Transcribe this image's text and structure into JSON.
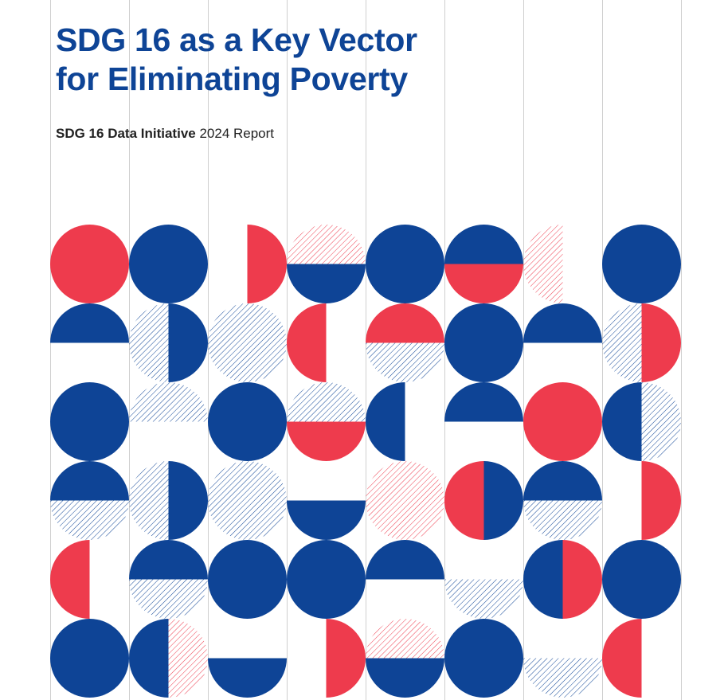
{
  "document": {
    "title_line1": "SDG 16 as a Key Vector",
    "title_line2": "for Eliminating Poverty",
    "subtitle_strong": "SDG 16 Data Initiative",
    "subtitle_rest": " 2024 Report"
  },
  "colors": {
    "navy": "#0e4496",
    "red": "#ee3b4d",
    "grid_line": "#cfcfcf",
    "background": "#ffffff"
  },
  "pattern": {
    "description_key": "decorative-dot-grid",
    "cells": [
      [
        "full-red",
        "split-h:navy:navy",
        "half-r:red",
        "split-h:hatch-red:navy",
        "full-navy",
        "split-h:navy:red",
        "half-l:hatch-red",
        "full-navy"
      ],
      [
        "half-t:navy",
        "split-v:hatch-navy:navy",
        "full-hatch-navy",
        "half-l:red",
        "split-h:red:hatch-navy",
        "full-navy",
        "half-t:navy",
        "split-v:hatch-navy:red"
      ],
      [
        "full-navy",
        "half-t:hatch-navy",
        "full-navy",
        "split-h:hatch-navy:red",
        "half-l:navy",
        "half-t:navy",
        "full-red",
        "split-v:navy:hatch-navy"
      ],
      [
        "split-h:navy:hatch-navy",
        "split-v:hatch-navy:navy",
        "full-hatch-navy",
        "half-b:navy",
        "full-hatch-red",
        "split-v:red:navy",
        "split-h:navy:hatch-navy",
        "half-r:red"
      ],
      [
        "half-l:red",
        "split-h:navy:hatch-navy",
        "full-navy",
        "full-navy",
        "half-t:navy",
        "half-b:hatch-navy",
        "split-v:navy:red",
        "full-navy"
      ],
      [
        "full-navy",
        "split-v:navy:hatch-red",
        "half-b:navy",
        "half-r:red",
        "split-h:hatch-red:navy",
        "full-navy",
        "half-b:hatch-navy",
        "half-l:red"
      ]
    ]
  }
}
